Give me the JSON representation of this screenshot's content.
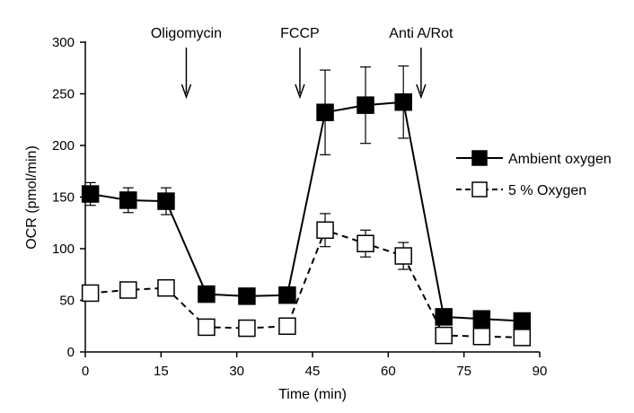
{
  "chart_data": {
    "type": "line",
    "title": "",
    "xlabel": "Time (min)",
    "ylabel": "OCR (pmol/min)",
    "xlim": [
      0,
      90
    ],
    "ylim": [
      0,
      300
    ],
    "x_ticks": [
      0,
      15,
      30,
      45,
      60,
      75,
      90
    ],
    "y_ticks": [
      0,
      50,
      100,
      150,
      200,
      250,
      300
    ],
    "grid": false,
    "legend_position": "right",
    "series": [
      {
        "name": "Ambient oxygen",
        "marker": "filled-square",
        "line_style": "solid",
        "x": [
          1,
          8.5,
          16,
          24,
          32,
          40,
          47.5,
          55.5,
          63,
          71,
          78.5,
          86.5
        ],
        "values": [
          153,
          147,
          146,
          56,
          54,
          55,
          232,
          239,
          242,
          34,
          32,
          30
        ],
        "error": [
          11,
          12,
          13,
          0,
          0,
          0,
          41,
          37,
          35,
          0,
          0,
          0
        ]
      },
      {
        "name": "5 % Oxygen",
        "marker": "open-square",
        "line_style": "dashed",
        "x": [
          1,
          8.5,
          16,
          24,
          32,
          40,
          47.5,
          55.5,
          63,
          71,
          78.5,
          86.5
        ],
        "values": [
          57,
          60,
          62,
          24,
          23,
          25,
          118,
          105,
          93,
          16,
          15,
          14
        ],
        "error": [
          0,
          0,
          0,
          0,
          0,
          0,
          16,
          13,
          13,
          0,
          0,
          0
        ]
      }
    ],
    "annotations": [
      {
        "label": "Oligomycin",
        "x": 20
      },
      {
        "label": "FCCP",
        "x": 42.5
      },
      {
        "label": "Anti A/Rot",
        "x": 66.5
      }
    ],
    "colors": {
      "ink": "#000000",
      "open_fill": "#ffffff"
    }
  }
}
